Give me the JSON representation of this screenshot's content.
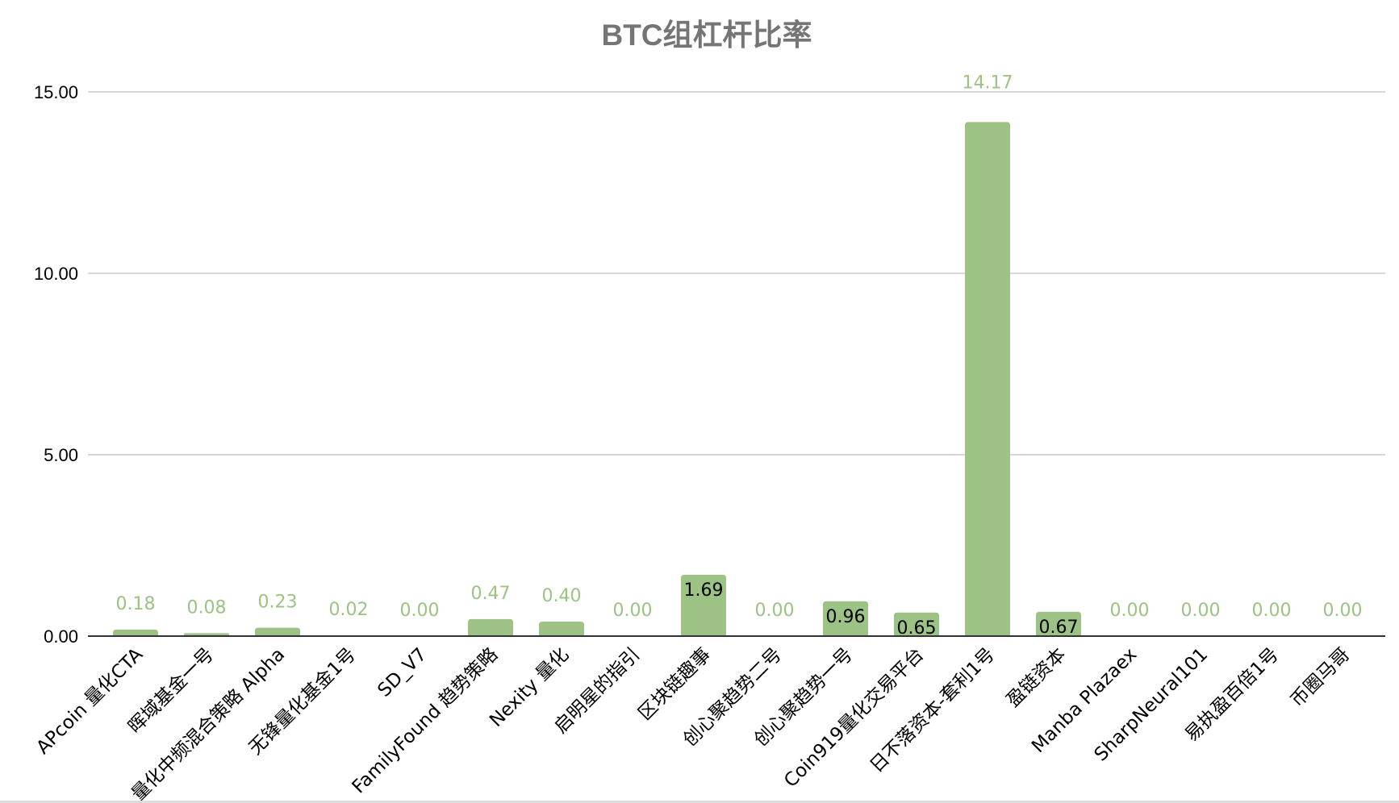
{
  "chart_data": {
    "type": "bar",
    "title": "BTC组杠杆比率",
    "xlabel": "",
    "ylabel": "",
    "ylim": [
      0,
      15
    ],
    "yticks": [
      "0.00",
      "5.00",
      "10.00",
      "15.00"
    ],
    "grid": true,
    "legend": null,
    "bar_color": "#9cc285",
    "categories": [
      "APcoin 量化CTA",
      "晖域基金一号",
      "…量化中频混合策略 Alpha",
      "无锋量化基金1号",
      "SD_V7",
      "FamilyFound 趋势策略",
      "Nexity 量化",
      "启明星的指引",
      "区块链趣事",
      "创心聚趋势二号",
      "创心聚趋势一号",
      "Coin919量化交易平台",
      "日不落资本-套利1号",
      "盈链资本",
      "Manba Plazaex",
      "SharpNeural101",
      "易执盈百倍1号",
      "币圈马哥"
    ],
    "values": [
      0.18,
      0.08,
      0.23,
      0.02,
      0.0,
      0.47,
      0.4,
      0.0,
      1.69,
      0.0,
      0.96,
      0.65,
      14.17,
      0.67,
      0.0,
      0.0,
      0.0,
      0.0
    ],
    "value_labels": [
      "0.18",
      "0.08",
      "0.23",
      "0.02",
      "0.00",
      "0.47",
      "0.40",
      "0.00",
      "1.69",
      "0.00",
      "0.96",
      "0.65",
      "14.17",
      "0.67",
      "0.00",
      "0.00",
      "0.00",
      "0.00"
    ]
  },
  "colors": {
    "bar": "#9cc285",
    "title": "#757575",
    "gridline": "#cccccc",
    "axis": "#333333",
    "label_outside": "#9cc285",
    "label_inside": "#000000"
  }
}
